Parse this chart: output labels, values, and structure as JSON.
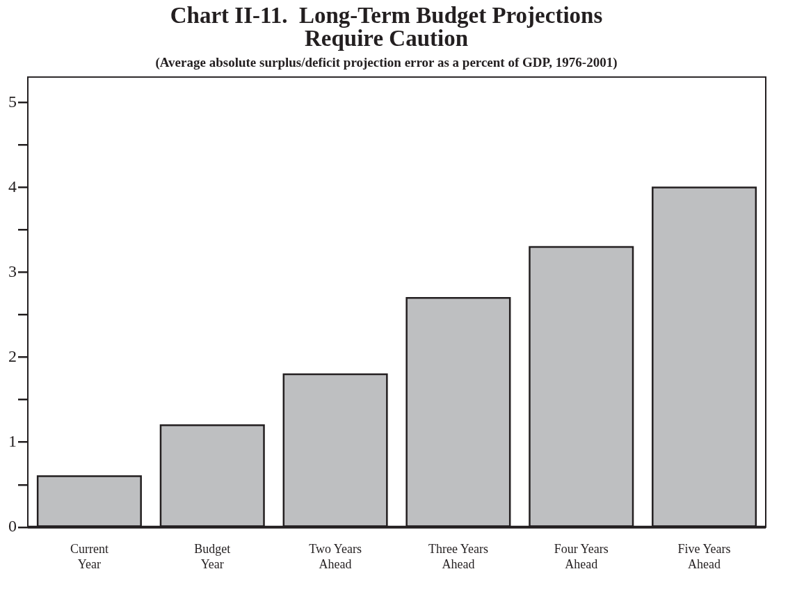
{
  "chart_data": {
    "type": "bar",
    "title": "Chart II-11.  Long-Term Budget Projections\nRequire Caution",
    "subtitle": "(Average absolute surplus/deficit projection error as a percent of GDP, 1976-2001)",
    "categories": [
      "Current\nYear",
      "Budget\nYear",
      "Two Years\nAhead",
      "Three Years\nAhead",
      "Four Years\nAhead",
      "Five Years\nAhead"
    ],
    "values": [
      0.6,
      1.2,
      1.8,
      2.7,
      3.3,
      4.0
    ],
    "color": "#bebfc1",
    "ylim": [
      0,
      5.3
    ],
    "yticks": [
      0,
      {
        "value": 0.5,
        "label": null
      },
      1,
      {
        "value": 1.5,
        "label": null
      },
      2,
      {
        "value": 2.5,
        "label": null
      },
      3,
      {
        "value": 3.5,
        "label": null
      },
      4,
      {
        "value": 4.5,
        "label": null
      },
      5
    ],
    "grid": false,
    "legend": false
  }
}
